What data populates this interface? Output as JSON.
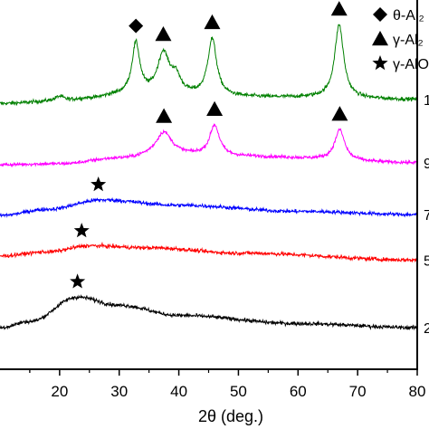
{
  "chart_data": {
    "type": "line",
    "xlabel": "2θ (deg.)",
    "xlim": [
      10,
      80
    ],
    "x_ticks": [
      "20",
      "30",
      "40",
      "50",
      "60",
      "70",
      "80"
    ],
    "legend": {
      "placement": "top-right",
      "entries": [
        {
          "marker": "diamond",
          "label": "θ-Al₂"
        },
        {
          "marker": "triangle",
          "label": "γ-Al₂"
        },
        {
          "marker": "star",
          "label": "γ-AlO"
        }
      ]
    },
    "series": [
      {
        "label": "1",
        "color": "#008000",
        "baseline": [
          [
            10,
            0.3
          ],
          [
            20,
            0.35
          ],
          [
            25,
            0.42
          ],
          [
            30,
            0.5
          ],
          [
            60,
            0.45
          ],
          [
            80,
            0.4
          ]
        ],
        "peaks": [
          {
            "x": 20.0,
            "h": 0.12,
            "w": 1.0
          },
          {
            "x": 32.8,
            "h": 1.25,
            "w": 0.8
          },
          {
            "x": 37.4,
            "h": 1.0,
            "w": 1.2
          },
          {
            "x": 39.5,
            "h": 0.4,
            "w": 1.0
          },
          {
            "x": 45.6,
            "h": 1.4,
            "w": 0.9
          },
          {
            "x": 66.9,
            "h": 1.8,
            "w": 0.9
          }
        ],
        "noise": 0.08,
        "markers": [
          {
            "x": 32.8,
            "type": "diamond"
          },
          {
            "x": 37.4,
            "type": "triangle"
          },
          {
            "x": 45.6,
            "type": "triangle"
          },
          {
            "x": 66.9,
            "type": "triangle"
          }
        ]
      },
      {
        "label": "9",
        "color": "#ff00ff",
        "baseline": [
          [
            10,
            0.0
          ],
          [
            20,
            0.02
          ],
          [
            30,
            0.15
          ],
          [
            38,
            0.25
          ],
          [
            50,
            0.2
          ],
          [
            80,
            0.05
          ]
        ],
        "peaks": [
          {
            "x": 37.5,
            "h": 0.55,
            "w": 1.6
          },
          {
            "x": 46.0,
            "h": 0.75,
            "w": 1.0
          },
          {
            "x": 67.0,
            "h": 0.75,
            "w": 1.0
          }
        ],
        "noise": 0.07,
        "markers": [
          {
            "x": 37.5,
            "type": "triangle"
          },
          {
            "x": 46.0,
            "type": "triangle"
          },
          {
            "x": 67.0,
            "type": "triangle"
          }
        ]
      },
      {
        "label": "7",
        "color": "#0000ff",
        "baseline": [
          [
            10,
            0.0
          ],
          [
            18,
            0.15
          ],
          [
            27,
            0.38
          ],
          [
            40,
            0.25
          ],
          [
            60,
            0.1
          ],
          [
            80,
            0.02
          ]
        ],
        "peaks": [],
        "noise": 0.08,
        "markers": [
          {
            "x": 26.5,
            "type": "star"
          }
        ]
      },
      {
        "label": "5",
        "color": "#ff0000",
        "baseline": [
          [
            10,
            0.05
          ],
          [
            18,
            0.15
          ],
          [
            25,
            0.3
          ],
          [
            35,
            0.25
          ],
          [
            50,
            0.12
          ],
          [
            80,
            -0.05
          ]
        ],
        "peaks": [],
        "noise": 0.08,
        "markers": [
          {
            "x": 23.7,
            "type": "star"
          }
        ]
      },
      {
        "label": "2",
        "color": "#000000",
        "baseline": [
          [
            10,
            0.0
          ],
          [
            15,
            0.15
          ],
          [
            23,
            0.75
          ],
          [
            30,
            0.55
          ],
          [
            40,
            0.3
          ],
          [
            60,
            0.1
          ],
          [
            80,
            0.0
          ]
        ],
        "peaks": [],
        "noise": 0.08,
        "markers": [
          {
            "x": 23.0,
            "type": "star"
          }
        ]
      }
    ]
  }
}
